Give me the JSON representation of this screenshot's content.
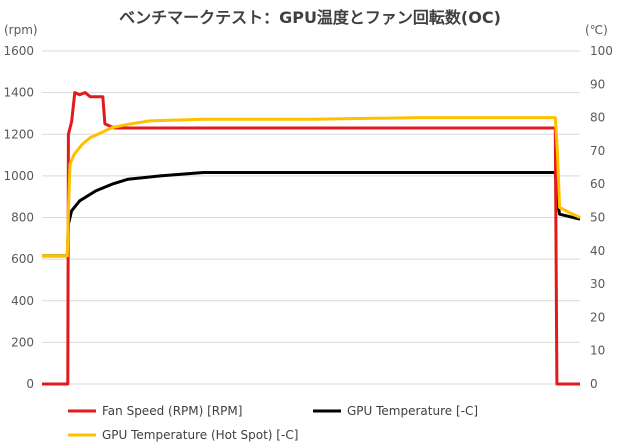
{
  "chart_data": {
    "type": "line",
    "title": "ベンチマークテスト：GPU温度とファン回転数(OC)",
    "ylabel": "(rpm)",
    "y2label": "(℃)",
    "xlabel": "",
    "xlim": [
      0,
      1000
    ],
    "ylim": [
      0,
      1600
    ],
    "y2lim": [
      0,
      100
    ],
    "yticks": [
      "0",
      "200",
      "400",
      "600",
      "800",
      "1000",
      "1200",
      "1400",
      "1600"
    ],
    "y2ticks": [
      "0",
      "10",
      "20",
      "30",
      "40",
      "50",
      "60",
      "70",
      "80",
      "90",
      "100"
    ],
    "grid": true,
    "legend_position": "bottom",
    "series": [
      {
        "name": "Fan Speed (RPM) [RPM]",
        "axis": "left",
        "color": "#e31a1c",
        "points": [
          [
            0,
            0
          ],
          [
            48,
            0
          ],
          [
            49,
            1200
          ],
          [
            55,
            1260
          ],
          [
            61,
            1400
          ],
          [
            70,
            1390
          ],
          [
            80,
            1400
          ],
          [
            90,
            1380
          ],
          [
            113,
            1380
          ],
          [
            117,
            1250
          ],
          [
            125,
            1240
          ],
          [
            135,
            1230
          ],
          [
            500,
            1230
          ],
          [
            954,
            1230
          ],
          [
            957,
            0
          ],
          [
            1000,
            0
          ]
        ]
      },
      {
        "name": "GPU Temperature [-C]",
        "axis": "right",
        "color": "#000000",
        "points": [
          [
            0,
            38.5
          ],
          [
            47,
            38.5
          ],
          [
            49,
            48
          ],
          [
            55,
            52
          ],
          [
            70,
            55
          ],
          [
            100,
            58
          ],
          [
            130,
            60
          ],
          [
            160,
            61.5
          ],
          [
            220,
            62.5
          ],
          [
            300,
            63.5
          ],
          [
            954,
            63.5
          ],
          [
            958,
            55
          ],
          [
            962,
            51
          ],
          [
            1000,
            49.5
          ]
        ]
      },
      {
        "name": "GPU Temperature (Hot Spot) [-C]",
        "axis": "right",
        "color": "#ffc000",
        "points": [
          [
            0,
            38.5
          ],
          [
            47,
            38.5
          ],
          [
            49,
            52
          ],
          [
            52,
            66
          ],
          [
            60,
            69
          ],
          [
            75,
            72
          ],
          [
            90,
            74
          ],
          [
            110,
            75.5
          ],
          [
            130,
            77
          ],
          [
            160,
            78
          ],
          [
            200,
            79
          ],
          [
            300,
            79.5
          ],
          [
            500,
            79.5
          ],
          [
            700,
            80
          ],
          [
            954,
            80
          ],
          [
            958,
            70
          ],
          [
            962,
            53
          ],
          [
            980,
            51.5
          ],
          [
            1000,
            50
          ]
        ]
      }
    ]
  }
}
